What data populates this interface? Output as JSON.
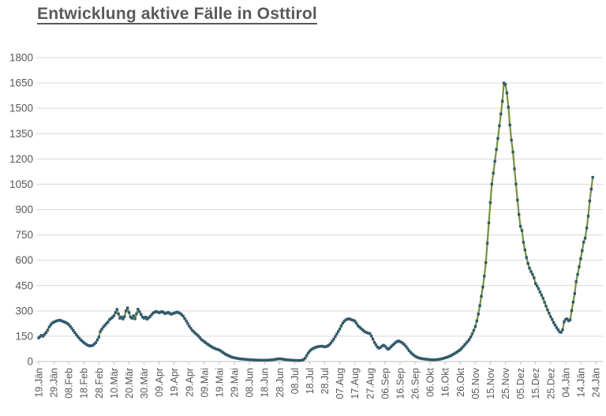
{
  "title": "Entwicklung aktive Fälle in Osttirol",
  "colors": {
    "title_text": "#595959",
    "axis_label_text": "#595959",
    "gridline": "#d9d9d9",
    "axis_line": "#bfbfbf",
    "series_line": "#76933C",
    "series_marker": "#31596B",
    "background": "#ffffff"
  },
  "chart_data": {
    "type": "line",
    "title": "Entwicklung aktive Fälle in Osttirol",
    "xlabel": "",
    "ylabel": "",
    "ylim": [
      0,
      1800
    ],
    "grid": "horizontal",
    "legend": "none",
    "y_axis": {
      "min": 0,
      "max": 1800,
      "step": 150,
      "tick_labels": [
        "0",
        "150",
        "300",
        "450",
        "600",
        "750",
        "900",
        "1050",
        "1200",
        "1350",
        "1500",
        "1650",
        "1800"
      ]
    },
    "x_axis": {
      "tick_interval_days": 10,
      "total_days": 370,
      "tick_labels": [
        "19.Jän",
        "29.Jän",
        "08.Feb",
        "18.Feb",
        "28.Feb",
        "10.Mär",
        "20.Mär",
        "30.Mär",
        "09.Apr",
        "19.Apr",
        "29.Apr",
        "09.Mai",
        "19.Mai",
        "29.Mai",
        "08.Jun",
        "18.Jun",
        "28.Jun",
        "08.Jul",
        "18.Jul",
        "28.Jul",
        "07.Aug",
        "17.Aug",
        "27.Aug",
        "06.Sep",
        "16.Sep",
        "26.Sep",
        "06.Okt",
        "16.Okt",
        "26.Okt",
        "05.Nov",
        "15.Nov",
        "25.Nov",
        "05.Dez",
        "15.Dez",
        "25.Dez",
        "04.Jän",
        "14.Jän",
        "24.Jän"
      ]
    },
    "series": [
      {
        "marker": "square",
        "line_color": "#76933C",
        "marker_color": "#31596B",
        "sampling": "daily values estimated from plot; anchors linearly interpolated to one point per day",
        "anchor_points_day_value": [
          [
            0,
            140
          ],
          [
            1,
            148
          ],
          [
            2,
            155
          ],
          [
            3,
            150
          ],
          [
            4,
            162
          ],
          [
            5,
            172
          ],
          [
            6,
            186
          ],
          [
            7,
            205
          ],
          [
            8,
            218
          ],
          [
            9,
            228
          ],
          [
            10,
            233
          ],
          [
            12,
            241
          ],
          [
            14,
            245
          ],
          [
            16,
            238
          ],
          [
            18,
            231
          ],
          [
            20,
            219
          ],
          [
            22,
            196
          ],
          [
            24,
            171
          ],
          [
            26,
            148
          ],
          [
            28,
            128
          ],
          [
            30,
            112
          ],
          [
            32,
            99
          ],
          [
            34,
            92
          ],
          [
            36,
            96
          ],
          [
            38,
            112
          ],
          [
            40,
            145
          ],
          [
            41,
            178
          ],
          [
            43,
            205
          ],
          [
            45,
            225
          ],
          [
            46,
            234
          ],
          [
            47,
            248
          ],
          [
            49,
            262
          ],
          [
            50,
            271
          ],
          [
            51,
            290
          ],
          [
            52,
            309
          ],
          [
            53,
            282
          ],
          [
            54,
            256
          ],
          [
            55,
            264
          ],
          [
            56,
            252
          ],
          [
            57,
            266
          ],
          [
            58,
            300
          ],
          [
            59,
            318
          ],
          [
            60,
            290
          ],
          [
            61,
            263
          ],
          [
            62,
            256
          ],
          [
            63,
            271
          ],
          [
            64,
            253
          ],
          [
            65,
            283
          ],
          [
            66,
            310
          ],
          [
            67,
            295
          ],
          [
            68,
            279
          ],
          [
            69,
            263
          ],
          [
            70,
            256
          ],
          [
            71,
            263
          ],
          [
            72,
            251
          ],
          [
            74,
            267
          ],
          [
            76,
            287
          ],
          [
            78,
            297
          ],
          [
            80,
            289
          ],
          [
            82,
            296
          ],
          [
            84,
            284
          ],
          [
            86,
            291
          ],
          [
            88,
            280
          ],
          [
            90,
            287
          ],
          [
            92,
            293
          ],
          [
            94,
            285
          ],
          [
            96,
            269
          ],
          [
            98,
            241
          ],
          [
            100,
            210
          ],
          [
            102,
            185
          ],
          [
            104,
            168
          ],
          [
            106,
            152
          ],
          [
            108,
            131
          ],
          [
            110,
            118
          ],
          [
            112,
            104
          ],
          [
            114,
            92
          ],
          [
            116,
            82
          ],
          [
            118,
            74
          ],
          [
            120,
            68
          ],
          [
            122,
            56
          ],
          [
            124,
            44
          ],
          [
            126,
            35
          ],
          [
            128,
            27
          ],
          [
            130,
            22
          ],
          [
            133,
            17
          ],
          [
            136,
            14
          ],
          [
            140,
            11
          ],
          [
            144,
            9
          ],
          [
            148,
            8
          ],
          [
            152,
            8
          ],
          [
            156,
            11
          ],
          [
            158,
            14
          ],
          [
            160,
            17
          ],
          [
            162,
            14
          ],
          [
            164,
            11
          ],
          [
            167,
            9
          ],
          [
            170,
            7
          ],
          [
            173,
            6
          ],
          [
            175,
            8
          ],
          [
            176,
            12
          ],
          [
            177,
            20
          ],
          [
            178,
            35
          ],
          [
            179,
            50
          ],
          [
            180,
            62
          ],
          [
            181,
            70
          ],
          [
            182,
            76
          ],
          [
            183,
            80
          ],
          [
            184,
            84
          ],
          [
            185,
            87
          ],
          [
            186,
            89
          ],
          [
            187,
            90
          ],
          [
            188,
            91
          ],
          [
            189,
            89
          ],
          [
            190,
            87
          ],
          [
            191,
            89
          ],
          [
            192,
            93
          ],
          [
            193,
            99
          ],
          [
            194,
            109
          ],
          [
            195,
            121
          ],
          [
            196,
            133
          ],
          [
            197,
            148
          ],
          [
            198,
            163
          ],
          [
            199,
            178
          ],
          [
            200,
            193
          ],
          [
            201,
            211
          ],
          [
            202,
            227
          ],
          [
            203,
            239
          ],
          [
            204,
            247
          ],
          [
            205,
            251
          ],
          [
            206,
            253
          ],
          [
            207,
            250
          ],
          [
            208,
            247
          ],
          [
            209,
            244
          ],
          [
            210,
            240
          ],
          [
            211,
            227
          ],
          [
            212,
            213
          ],
          [
            213,
            205
          ],
          [
            214,
            197
          ],
          [
            215,
            189
          ],
          [
            216,
            181
          ],
          [
            217,
            175
          ],
          [
            218,
            171
          ],
          [
            219,
            168
          ],
          [
            220,
            165
          ],
          [
            221,
            151
          ],
          [
            222,
            133
          ],
          [
            223,
            113
          ],
          [
            224,
            99
          ],
          [
            225,
            86
          ],
          [
            226,
            79
          ],
          [
            227,
            83
          ],
          [
            228,
            91
          ],
          [
            229,
            97
          ],
          [
            230,
            91
          ],
          [
            231,
            81
          ],
          [
            232,
            73
          ],
          [
            233,
            78
          ],
          [
            234,
            87
          ],
          [
            235,
            96
          ],
          [
            236,
            104
          ],
          [
            237,
            112
          ],
          [
            238,
            118
          ],
          [
            239,
            122
          ],
          [
            240,
            118
          ],
          [
            241,
            114
          ],
          [
            242,
            107
          ],
          [
            243,
            99
          ],
          [
            244,
            89
          ],
          [
            245,
            77
          ],
          [
            246,
            65
          ],
          [
            247,
            55
          ],
          [
            248,
            46
          ],
          [
            249,
            39
          ],
          [
            250,
            32
          ],
          [
            251,
            27
          ],
          [
            252,
            23
          ],
          [
            253,
            20
          ],
          [
            254,
            18
          ],
          [
            256,
            15
          ],
          [
            258,
            13
          ],
          [
            260,
            11
          ],
          [
            262,
            10
          ],
          [
            264,
            11
          ],
          [
            266,
            13
          ],
          [
            268,
            17
          ],
          [
            270,
            22
          ],
          [
            272,
            28
          ],
          [
            274,
            36
          ],
          [
            276,
            46
          ],
          [
            278,
            57
          ],
          [
            280,
            70
          ],
          [
            281,
            79
          ],
          [
            282,
            89
          ],
          [
            283,
            99
          ],
          [
            284,
            109
          ],
          [
            285,
            119
          ],
          [
            286,
            131
          ],
          [
            287,
            146
          ],
          [
            288,
            164
          ],
          [
            289,
            184
          ],
          [
            290,
            207
          ],
          [
            291,
            241
          ],
          [
            292,
            281
          ],
          [
            293,
            331
          ],
          [
            294,
            386
          ],
          [
            295,
            441
          ],
          [
            296,
            506
          ],
          [
            297,
            586
          ],
          [
            298,
            701
          ],
          [
            299,
            821
          ],
          [
            300,
            941
          ],
          [
            301,
            1051
          ],
          [
            302,
            1116
          ],
          [
            303,
            1186
          ],
          [
            304,
            1256
          ],
          [
            305,
            1321
          ],
          [
            306,
            1396
          ],
          [
            307,
            1466
          ],
          [
            308,
            1541
          ],
          [
            309,
            1650
          ],
          [
            310,
            1641
          ],
          [
            311,
            1591
          ],
          [
            312,
            1506
          ],
          [
            313,
            1401
          ],
          [
            314,
            1311
          ],
          [
            315,
            1241
          ],
          [
            316,
            1141
          ],
          [
            317,
            1051
          ],
          [
            318,
            956
          ],
          [
            319,
            871
          ],
          [
            320,
            801
          ],
          [
            321,
            776
          ],
          [
            322,
            706
          ],
          [
            323,
            661
          ],
          [
            324,
            616
          ],
          [
            325,
            581
          ],
          [
            326,
            553
          ],
          [
            327,
            533
          ],
          [
            328,
            516
          ],
          [
            329,
            496
          ],
          [
            330,
            462
          ],
          [
            331,
            448
          ],
          [
            332,
            432
          ],
          [
            333,
            412
          ],
          [
            334,
            393
          ],
          [
            335,
            375
          ],
          [
            336,
            351
          ],
          [
            337,
            328
          ],
          [
            338,
            306
          ],
          [
            339,
            286
          ],
          [
            340,
            266
          ],
          [
            341,
            249
          ],
          [
            342,
            231
          ],
          [
            343,
            216
          ],
          [
            344,
            201
          ],
          [
            345,
            188
          ],
          [
            346,
            176
          ],
          [
            347,
            173
          ],
          [
            348,
            188
          ],
          [
            349,
            235
          ],
          [
            350,
            249
          ],
          [
            351,
            253
          ],
          [
            352,
            241
          ],
          [
            353,
            247
          ],
          [
            354,
            301
          ],
          [
            355,
            352
          ],
          [
            356,
            403
          ],
          [
            357,
            473
          ],
          [
            358,
            516
          ],
          [
            359,
            561
          ],
          [
            360,
            609
          ],
          [
            361,
            656
          ],
          [
            362,
            707
          ],
          [
            363,
            731
          ],
          [
            364,
            791
          ],
          [
            365,
            861
          ],
          [
            366,
            951
          ],
          [
            367,
            1021
          ],
          [
            368,
            1091
          ]
        ]
      }
    ]
  }
}
